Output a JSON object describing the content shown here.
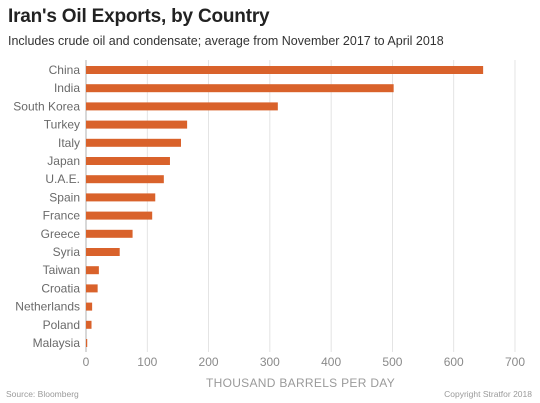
{
  "chart_data": {
    "type": "bar",
    "orientation": "horizontal",
    "title": "Iran's Oil Exports, by Country",
    "subtitle": "Includes crude oil and condensate; average from November 2017 to April 2018",
    "xlabel": "THOUSAND BARRELS PER DAY",
    "categories": [
      "China",
      "India",
      "South Korea",
      "Turkey",
      "Italy",
      "Japan",
      "U.A.E.",
      "Spain",
      "France",
      "Greece",
      "Syria",
      "Taiwan",
      "Croatia",
      "Netherlands",
      "Poland",
      "Malaysia"
    ],
    "values": [
      648,
      502,
      313,
      165,
      155,
      137,
      127,
      113,
      108,
      76,
      55,
      21,
      19,
      10,
      9,
      2
    ],
    "xlim": [
      0,
      700
    ],
    "xticks": [
      0,
      100,
      200,
      300,
      400,
      500,
      600,
      700
    ],
    "grid": true,
    "colors": {
      "bar": "#d9622b",
      "grid": "#dddddd",
      "axis": "#b0b0b0",
      "label": "#6a6a6a",
      "tick": "#8a8a8a"
    }
  },
  "footer": {
    "source": "Source: Bloomberg",
    "copyright": "Copyright Stratfor 2018"
  }
}
